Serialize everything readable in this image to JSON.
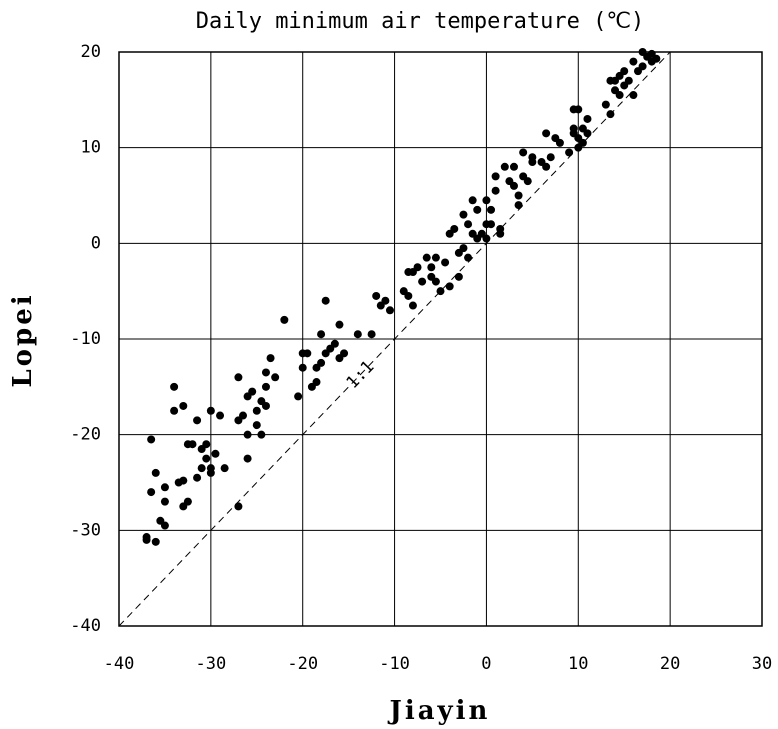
{
  "chart_data": {
    "type": "scatter",
    "title": "Daily minimum air temperature (℃)",
    "x_label": "Jiayin",
    "y_label": "Lopei",
    "annotation": "1:1",
    "color": "#000000",
    "grid": true,
    "xlim": [
      -40,
      30
    ],
    "ylim": [
      -40,
      20
    ],
    "xticks": [
      -40,
      -30,
      -20,
      -10,
      0,
      10,
      20,
      30
    ],
    "yticks": [
      -40,
      -30,
      -20,
      -10,
      0,
      10,
      20
    ],
    "x": [
      -37,
      -37,
      -36,
      -36.5,
      -36.5,
      -36,
      -35.5,
      -35,
      -35,
      -35,
      -34,
      -34,
      -33.5,
      -33,
      -33,
      -33,
      -32.5,
      -32.5,
      -32,
      -31.5,
      -31.5,
      -31,
      -31,
      -30.5,
      -30.5,
      -30,
      -30,
      -30,
      -29.5,
      -29,
      -28.5,
      -27,
      -27,
      -27,
      -26.5,
      -26,
      -26,
      -26,
      -25.5,
      -25,
      -25,
      -24.5,
      -24.5,
      -24,
      -24,
      -24,
      -23.5,
      -23,
      -22,
      -20.5,
      -20,
      -20,
      -19.5,
      -19,
      -18.5,
      -18.5,
      -18,
      -18,
      -17.5,
      -17.5,
      -17,
      -16.5,
      -16,
      -16,
      -15.5,
      -14,
      -12.5,
      -12,
      -11.5,
      -11,
      -10.5,
      -9,
      -8.5,
      -8.5,
      -8,
      -8,
      -7.5,
      -7,
      -6.5,
      -6,
      -6,
      -5.5,
      -5.5,
      -5,
      -4.5,
      -4,
      -4,
      -3.5,
      -3,
      -3,
      -2.5,
      -2.5,
      -2,
      -2,
      -1.5,
      -1.5,
      -1,
      -1,
      -0.5,
      0,
      0,
      0,
      0.5,
      0.5,
      1,
      1,
      1.5,
      1.5,
      2,
      2.5,
      3,
      3,
      3.5,
      3.5,
      4,
      4,
      4.5,
      5,
      5,
      6,
      6.5,
      6.5,
      7,
      7.5,
      8,
      9,
      9.5,
      9.5,
      9.5,
      10,
      10,
      10,
      10.5,
      10.5,
      11,
      11,
      13,
      13.5,
      13.5,
      14,
      14,
      14.5,
      14.5,
      15,
      15,
      15.5,
      16,
      16,
      16.5,
      17,
      17,
      17.5,
      18,
      18,
      18.5
    ],
    "y": [
      -31,
      -30.7,
      -31.2,
      -26,
      -20.5,
      -24,
      -29,
      -29.5,
      -27,
      -25.5,
      -17.5,
      -15,
      -25,
      -27.5,
      -24.8,
      -17,
      -21,
      -27,
      -21,
      -24.5,
      -18.5,
      -21.5,
      -23.5,
      -22.5,
      -21,
      -23.5,
      -24,
      -17.5,
      -22,
      -18,
      -23.5,
      -27.5,
      -14,
      -18.5,
      -18,
      -16,
      -20,
      -22.5,
      -15.5,
      -17.5,
      -19,
      -16.5,
      -20,
      -17,
      -13.5,
      -15,
      -12,
      -14,
      -8,
      -16,
      -13,
      -11.5,
      -11.5,
      -15,
      -13,
      -14.5,
      -12.5,
      -9.5,
      -6,
      -11.5,
      -11,
      -10.5,
      -12,
      -8.5,
      -11.5,
      -9.5,
      -9.5,
      -5.5,
      -6.5,
      -6,
      -7,
      -5,
      -3,
      -5.5,
      -3,
      -6.5,
      -2.5,
      -4,
      -1.5,
      -3.5,
      -2.5,
      -1.5,
      -4,
      -5,
      -2,
      1,
      -4.5,
      1.5,
      -3.5,
      -1,
      -0.5,
      3,
      2,
      -1.5,
      1,
      4.5,
      3.5,
      0.5,
      1,
      2,
      0.5,
      4.5,
      3.5,
      2,
      7,
      5.5,
      1.5,
      1,
      8,
      6.5,
      8,
      6,
      5,
      4,
      9.5,
      7,
      6.5,
      8.5,
      9,
      8.5,
      8,
      11.5,
      9,
      11,
      10.5,
      9.5,
      11.5,
      12,
      14,
      14,
      11,
      10,
      10.5,
      12,
      11.5,
      13,
      14.5,
      17,
      13.5,
      16,
      17,
      15.5,
      17.5,
      16.5,
      18,
      17,
      15.5,
      19,
      18,
      18.5,
      20,
      19.5,
      19,
      19.8,
      19.3
    ]
  }
}
